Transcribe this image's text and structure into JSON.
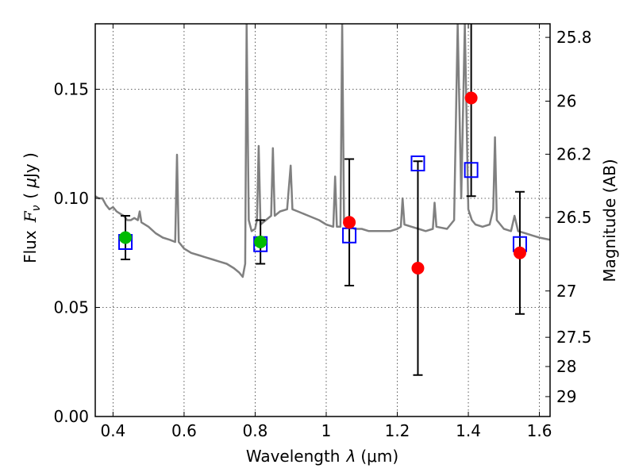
{
  "chart_data": {
    "type": "scatter",
    "xlabel": "Wavelength",
    "xlabel_symbol": "λ",
    "xlabel_unit": "(μm)",
    "ylabel": "Flux",
    "ylabel_symbol": "F",
    "ylabel_sub": "ν",
    "ylabel_unit_open": "(",
    "ylabel_unit_mu": "μ",
    "ylabel_unit_rest": "Jy )",
    "y2label": "Magnitude (AB)",
    "xlim": [
      0.35,
      1.63
    ],
    "ylim": [
      0.0,
      0.18
    ],
    "x_ticks": [
      0.4,
      0.6,
      0.8,
      1.0,
      1.2,
      1.4,
      1.6
    ],
    "x_tick_labels": [
      "0.4",
      "0.6",
      "0.8",
      "1",
      "1.2",
      "1.4",
      "1.6"
    ],
    "y_ticks": [
      0.0,
      0.05,
      0.1,
      0.15
    ],
    "y_tick_labels": [
      "0.00",
      "0.05",
      "0.10",
      "0.15"
    ],
    "y2_ticks": [
      25.8,
      26,
      26.2,
      26.5,
      27,
      27.5,
      28,
      29
    ],
    "y2_tick_labels": [
      "25.8",
      "26",
      "26.2",
      "26.5",
      "27",
      "27.5",
      "28",
      "29"
    ],
    "grid": true,
    "colors": {
      "spectrum": "#808080",
      "model": "#0000ff",
      "observed_red": "#ff0000",
      "observed_green": "#00bb00",
      "errorbar": "#000000"
    },
    "series": [
      {
        "type": "line",
        "role": "model-spectrum",
        "points": [
          [
            0.35,
            0.101
          ],
          [
            0.36,
            0.1
          ],
          [
            0.37,
            0.1
          ],
          [
            0.38,
            0.097
          ],
          [
            0.39,
            0.095
          ],
          [
            0.4,
            0.096
          ],
          [
            0.41,
            0.094
          ],
          [
            0.42,
            0.093
          ],
          [
            0.43,
            0.092
          ],
          [
            0.44,
            0.09
          ],
          [
            0.45,
            0.09
          ],
          [
            0.46,
            0.091
          ],
          [
            0.47,
            0.09
          ],
          [
            0.475,
            0.094
          ],
          [
            0.48,
            0.089
          ],
          [
            0.5,
            0.087
          ],
          [
            0.52,
            0.084
          ],
          [
            0.54,
            0.082
          ],
          [
            0.56,
            0.081
          ],
          [
            0.575,
            0.08
          ],
          [
            0.58,
            0.12
          ],
          [
            0.585,
            0.08
          ],
          [
            0.6,
            0.077
          ],
          [
            0.62,
            0.075
          ],
          [
            0.64,
            0.074
          ],
          [
            0.66,
            0.073
          ],
          [
            0.68,
            0.072
          ],
          [
            0.7,
            0.071
          ],
          [
            0.72,
            0.07
          ],
          [
            0.74,
            0.068
          ],
          [
            0.755,
            0.066
          ],
          [
            0.765,
            0.064
          ],
          [
            0.772,
            0.07
          ],
          [
            0.776,
            0.18
          ],
          [
            0.782,
            0.09
          ],
          [
            0.79,
            0.085
          ],
          [
            0.8,
            0.086
          ],
          [
            0.805,
            0.09
          ],
          [
            0.81,
            0.124
          ],
          [
            0.815,
            0.088
          ],
          [
            0.83,
            0.09
          ],
          [
            0.845,
            0.092
          ],
          [
            0.85,
            0.123
          ],
          [
            0.855,
            0.092
          ],
          [
            0.87,
            0.094
          ],
          [
            0.89,
            0.095
          ],
          [
            0.9,
            0.115
          ],
          [
            0.905,
            0.095
          ],
          [
            0.92,
            0.094
          ],
          [
            0.95,
            0.092
          ],
          [
            0.98,
            0.09
          ],
          [
            1.0,
            0.088
          ],
          [
            1.02,
            0.087
          ],
          [
            1.025,
            0.11
          ],
          [
            1.03,
            0.087
          ],
          [
            1.04,
            0.087
          ],
          [
            1.045,
            0.18
          ],
          [
            1.05,
            0.09
          ],
          [
            1.06,
            0.088
          ],
          [
            1.08,
            0.086
          ],
          [
            1.1,
            0.086
          ],
          [
            1.12,
            0.085
          ],
          [
            1.14,
            0.085
          ],
          [
            1.16,
            0.085
          ],
          [
            1.18,
            0.085
          ],
          [
            1.2,
            0.086
          ],
          [
            1.21,
            0.087
          ],
          [
            1.215,
            0.1
          ],
          [
            1.22,
            0.088
          ],
          [
            1.24,
            0.087
          ],
          [
            1.26,
            0.086
          ],
          [
            1.28,
            0.085
          ],
          [
            1.3,
            0.086
          ],
          [
            1.305,
            0.098
          ],
          [
            1.31,
            0.087
          ],
          [
            1.34,
            0.086
          ],
          [
            1.36,
            0.09
          ],
          [
            1.37,
            0.18
          ],
          [
            1.38,
            0.1
          ],
          [
            1.39,
            0.18
          ],
          [
            1.4,
            0.095
          ],
          [
            1.41,
            0.09
          ],
          [
            1.42,
            0.088
          ],
          [
            1.44,
            0.087
          ],
          [
            1.46,
            0.088
          ],
          [
            1.47,
            0.095
          ],
          [
            1.475,
            0.128
          ],
          [
            1.48,
            0.09
          ],
          [
            1.5,
            0.086
          ],
          [
            1.52,
            0.085
          ],
          [
            1.53,
            0.092
          ],
          [
            1.54,
            0.085
          ],
          [
            1.56,
            0.084
          ],
          [
            1.58,
            0.083
          ],
          [
            1.6,
            0.082
          ],
          [
            1.63,
            0.081
          ]
        ]
      },
      {
        "type": "scatter",
        "role": "model-photometry",
        "marker": "open-square",
        "points": [
          [
            0.435,
            0.08
          ],
          [
            0.815,
            0.079
          ],
          [
            1.065,
            0.083
          ],
          [
            1.258,
            0.116
          ],
          [
            1.408,
            0.113
          ],
          [
            1.545,
            0.079
          ]
        ]
      },
      {
        "type": "scatter",
        "role": "observed-photometry",
        "marker": "circle",
        "points": [
          {
            "x": 0.435,
            "y": 0.082,
            "err": 0.01,
            "color": "green"
          },
          {
            "x": 0.815,
            "y": 0.08,
            "err": 0.01,
            "color": "green"
          },
          {
            "x": 1.065,
            "y": 0.089,
            "err": 0.029,
            "color": "red"
          },
          {
            "x": 1.258,
            "y": 0.068,
            "err": 0.049,
            "color": "red"
          },
          {
            "x": 1.408,
            "y": 0.146,
            "err": 0.045,
            "color": "red"
          },
          {
            "x": 1.545,
            "y": 0.075,
            "err": 0.028,
            "color": "red"
          }
        ]
      }
    ]
  }
}
